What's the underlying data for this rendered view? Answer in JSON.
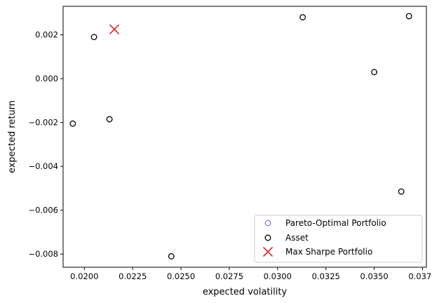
{
  "chart_data": {
    "type": "scatter",
    "xlabel": "expected volatility",
    "ylabel": "expected return",
    "xlim": [
      0.0189,
      0.0377
    ],
    "ylim": [
      -0.0086,
      0.0033
    ],
    "xticks": [
      0.02,
      0.0225,
      0.025,
      0.0275,
      0.03,
      0.0325,
      0.035,
      0.0375
    ],
    "xtick_labels": [
      "0.0200",
      "0.0225",
      "0.0250",
      "0.0275",
      "0.0300",
      "0.0325",
      "0.0350",
      "0.0375"
    ],
    "yticks": [
      -0.008,
      -0.006,
      -0.004,
      -0.002,
      0.0,
      0.002
    ],
    "ytick_labels": [
      "−0.008",
      "−0.006",
      "−0.004",
      "−0.002",
      "0.000",
      "0.002"
    ],
    "grid": false,
    "legend_position": "lower-right",
    "series": [
      {
        "name": "Pareto-Optimal Portfolio",
        "marker": "circle",
        "color": "#8b84e0",
        "points": []
      },
      {
        "name": "Asset",
        "marker": "circle",
        "color": "#000000",
        "points": [
          [
            0.0194,
            -0.00205
          ],
          [
            0.0205,
            0.0019
          ],
          [
            0.0213,
            -0.00185
          ],
          [
            0.0245,
            -0.0081
          ],
          [
            0.0313,
            0.0028
          ],
          [
            0.035,
            0.0003
          ],
          [
            0.0364,
            -0.00515
          ],
          [
            0.0368,
            0.00285
          ]
        ]
      },
      {
        "name": "Max Sharpe Portfolio",
        "marker": "x",
        "color": "#d62728",
        "points": [
          [
            0.02155,
            0.00225
          ]
        ]
      }
    ]
  }
}
